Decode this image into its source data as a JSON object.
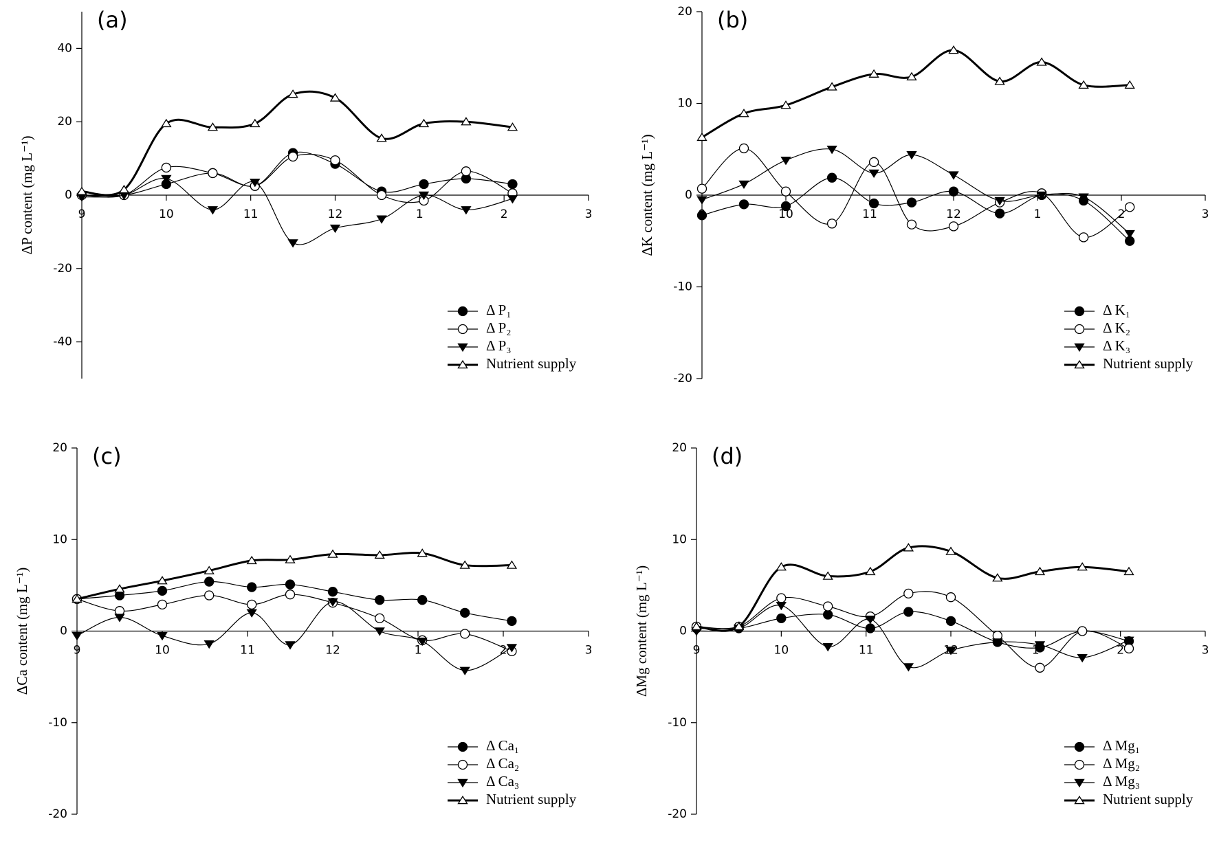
{
  "chart_data": [
    {
      "type": "line",
      "title": "(a)",
      "ylabel": "ΔP content (mg L⁻¹)",
      "x": [
        0,
        0.5,
        1.0,
        1.55,
        2.05,
        2.5,
        3.0,
        3.55,
        4.05,
        4.55,
        5.1
      ],
      "xlim": [
        0,
        6
      ],
      "xticks": [
        {
          "value": 0,
          "label": "9"
        },
        {
          "value": 1,
          "label": "10"
        },
        {
          "value": 2,
          "label": "11"
        },
        {
          "value": 3,
          "label": "12"
        },
        {
          "value": 4,
          "label": "1"
        },
        {
          "value": 5,
          "label": "2"
        },
        {
          "value": 6,
          "label": "3"
        }
      ],
      "ylim": [
        -50,
        50
      ],
      "yticks": [
        -40,
        -20,
        0,
        20,
        40
      ],
      "legend": "lower right",
      "series": [
        {
          "name": "Δ P₁",
          "color": "#000000",
          "marker": "circle",
          "values": [
            0,
            0,
            3,
            6,
            2.5,
            11.5,
            8.5,
            1,
            3,
            4.5,
            3
          ]
        },
        {
          "name": "Δ P₂",
          "color": "#000000",
          "marker": "circle-open",
          "values": [
            0,
            0,
            7.5,
            6,
            2.5,
            10.5,
            9.5,
            0,
            -1.5,
            6.5,
            0.5
          ]
        },
        {
          "name": "Δ P₃",
          "color": "#000000",
          "marker": "triangle-down",
          "values": [
            -0.5,
            0,
            4.5,
            -4,
            3.5,
            -13,
            -9,
            -6.5,
            0,
            -4,
            -1
          ]
        },
        {
          "name": "Nutrient supply",
          "color": "#000000",
          "marker": "triangle-up-open",
          "bold": true,
          "values": [
            1,
            1.5,
            19.5,
            18.5,
            19.5,
            27.5,
            26.5,
            15.5,
            19.5,
            20,
            18.5
          ]
        }
      ]
    },
    {
      "type": "line",
      "title": "(b)",
      "ylabel": "ΔK content (mg L⁻¹)",
      "x": [
        0,
        0.5,
        1.0,
        1.55,
        2.05,
        2.5,
        3.0,
        3.55,
        4.05,
        4.55,
        5.1
      ],
      "xlim": [
        0,
        6
      ],
      "xticks": [
        {
          "value": 0,
          "label": "9"
        },
        {
          "value": 1,
          "label": "10"
        },
        {
          "value": 2,
          "label": "11"
        },
        {
          "value": 3,
          "label": "12"
        },
        {
          "value": 4,
          "label": "1"
        },
        {
          "value": 5,
          "label": "2"
        },
        {
          "value": 6,
          "label": "3"
        }
      ],
      "ylim": [
        -20,
        20
      ],
      "yticks": [
        -20,
        -10,
        0,
        10,
        20
      ],
      "legend": "lower right",
      "series": [
        {
          "name": "Δ K₁",
          "color": "#000000",
          "marker": "circle",
          "values": [
            -2.2,
            -1,
            -1.2,
            1.9,
            -0.9,
            -0.8,
            0.4,
            -2,
            0,
            -0.6,
            -5
          ]
        },
        {
          "name": "Δ K₂",
          "color": "#000000",
          "marker": "circle-open",
          "values": [
            0.7,
            5.1,
            0.4,
            -3.1,
            3.6,
            -3.2,
            -3.4,
            -0.8,
            0.2,
            -4.6,
            -1.3
          ]
        },
        {
          "name": "Δ K₃",
          "color": "#000000",
          "marker": "triangle-down",
          "values": [
            -0.5,
            1.2,
            3.8,
            5,
            2.4,
            4.4,
            2.2,
            -0.6,
            0,
            -0.2,
            -4.2
          ]
        },
        {
          "name": "Nutrient supply",
          "color": "#000000",
          "marker": "triangle-up-open",
          "bold": true,
          "values": [
            6.3,
            8.9,
            9.8,
            11.8,
            13.2,
            12.9,
            15.8,
            12.4,
            14.5,
            12,
            12
          ]
        }
      ]
    },
    {
      "type": "line",
      "title": "(c)",
      "ylabel": "ΔCa content (mg L⁻¹)",
      "x": [
        0,
        0.5,
        1.0,
        1.55,
        2.05,
        2.5,
        3.0,
        3.55,
        4.05,
        4.55,
        5.1
      ],
      "xlim": [
        0,
        6
      ],
      "xticks": [
        {
          "value": 0,
          "label": "9"
        },
        {
          "value": 1,
          "label": "10"
        },
        {
          "value": 2,
          "label": "11"
        },
        {
          "value": 3,
          "label": "12"
        },
        {
          "value": 4,
          "label": "1"
        },
        {
          "value": 5,
          "label": "2"
        },
        {
          "value": 6,
          "label": "3"
        }
      ],
      "ylim": [
        -20,
        20
      ],
      "yticks": [
        -20,
        -10,
        0,
        10,
        20
      ],
      "legend": "lower right",
      "series": [
        {
          "name": "Δ Ca₁",
          "color": "#000000",
          "marker": "circle",
          "values": [
            3.5,
            3.9,
            4.4,
            5.4,
            4.8,
            5.1,
            4.3,
            3.4,
            3.4,
            2,
            1.1
          ]
        },
        {
          "name": "Δ Ca₂",
          "color": "#000000",
          "marker": "circle-open",
          "values": [
            3.5,
            2.2,
            2.9,
            3.9,
            2.9,
            4,
            3.1,
            1.4,
            -1,
            -0.3,
            -2.2
          ]
        },
        {
          "name": "Δ Ca₃",
          "color": "#000000",
          "marker": "triangle-down",
          "values": [
            -0.5,
            1.5,
            -0.5,
            -1.4,
            2,
            -1.5,
            3.2,
            0,
            -1.1,
            -4.3,
            -1.8
          ]
        },
        {
          "name": "Nutrient supply",
          "color": "#000000",
          "marker": "triangle-up-open",
          "bold": true,
          "values": [
            3.5,
            4.6,
            5.5,
            6.6,
            7.7,
            7.8,
            8.4,
            8.3,
            8.5,
            7.2,
            7.2
          ]
        }
      ]
    },
    {
      "type": "line",
      "title": "(d)",
      "ylabel": "ΔMg content (mg L⁻¹)",
      "x": [
        0,
        0.5,
        1.0,
        1.55,
        2.05,
        2.5,
        3.0,
        3.55,
        4.05,
        4.55,
        5.1
      ],
      "xlim": [
        0,
        6
      ],
      "xticks": [
        {
          "value": 0,
          "label": "9"
        },
        {
          "value": 1,
          "label": "10"
        },
        {
          "value": 2,
          "label": "11"
        },
        {
          "value": 3,
          "label": "12"
        },
        {
          "value": 4,
          "label": "1"
        },
        {
          "value": 5,
          "label": "2"
        },
        {
          "value": 6,
          "label": "3"
        }
      ],
      "ylim": [
        -20,
        20
      ],
      "yticks": [
        -20,
        -10,
        0,
        10,
        20
      ],
      "legend": "lower right",
      "series": [
        {
          "name": "Δ Mg₁",
          "color": "#000000",
          "marker": "circle",
          "values": [
            0.3,
            0.3,
            1.4,
            1.8,
            0.3,
            2.1,
            1.1,
            -1.2,
            -1.8,
            0,
            -1.1
          ]
        },
        {
          "name": "Δ Mg₂",
          "color": "#000000",
          "marker": "circle-open",
          "values": [
            0.5,
            0.5,
            3.6,
            2.7,
            1.6,
            4.1,
            3.7,
            -0.5,
            -4,
            0,
            -1.9
          ]
        },
        {
          "name": "Δ Mg₃",
          "color": "#000000",
          "marker": "triangle-down",
          "values": [
            0,
            0.3,
            2.8,
            -1.7,
            1.3,
            -3.9,
            -2.1,
            -1.2,
            -1.5,
            -2.9,
            -1
          ]
        },
        {
          "name": "Nutrient supply",
          "color": "#000000",
          "marker": "triangle-up-open",
          "bold": true,
          "values": [
            0.5,
            0.5,
            7,
            6,
            6.5,
            9.1,
            8.7,
            5.8,
            6.5,
            7,
            6.5
          ]
        }
      ]
    }
  ]
}
